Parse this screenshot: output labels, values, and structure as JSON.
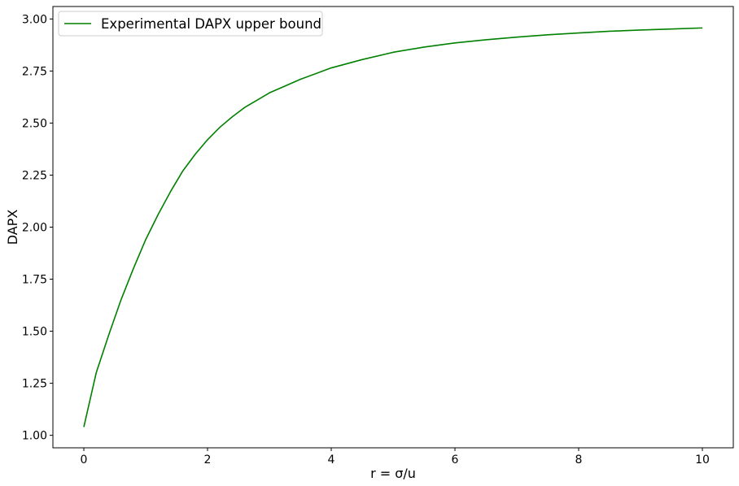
{
  "chart_data": {
    "type": "line",
    "title": "",
    "xlabel": "r = σ/u",
    "ylabel": "DAPX",
    "xlim": [
      -0.5,
      10.5
    ],
    "ylim": [
      0.94,
      3.06
    ],
    "x_ticks": [
      0,
      2,
      4,
      6,
      8,
      10
    ],
    "x_tick_labels": [
      "0",
      "2",
      "4",
      "6",
      "8",
      "10"
    ],
    "y_ticks": [
      1.0,
      1.25,
      1.5,
      1.75,
      2.0,
      2.25,
      2.5,
      2.75,
      3.0
    ],
    "y_tick_labels": [
      "1.00",
      "1.25",
      "1.50",
      "1.75",
      "2.00",
      "2.25",
      "2.50",
      "2.75",
      "3.00"
    ],
    "grid": false,
    "legend_position": "top-left",
    "series": [
      {
        "name": "Experimental DAPX upper bound",
        "color": "#008000",
        "x": [
          0,
          0.2,
          0.4,
          0.6,
          0.8,
          1.0,
          1.2,
          1.4,
          1.6,
          1.8,
          2.0,
          2.2,
          2.4,
          2.6,
          2.8,
          3.0,
          3.5,
          4.0,
          4.5,
          5.0,
          5.5,
          6.0,
          6.5,
          7.0,
          7.5,
          8.0,
          8.5,
          9.0,
          9.5,
          10.0
        ],
        "y": [
          1.04,
          1.3,
          1.48,
          1.65,
          1.8,
          1.94,
          2.06,
          2.17,
          2.27,
          2.35,
          2.42,
          2.48,
          2.53,
          2.575,
          2.61,
          2.645,
          2.71,
          2.765,
          2.805,
          2.84,
          2.865,
          2.885,
          2.9,
          2.913,
          2.924,
          2.933,
          2.941,
          2.947,
          2.952,
          2.957
        ]
      }
    ]
  }
}
